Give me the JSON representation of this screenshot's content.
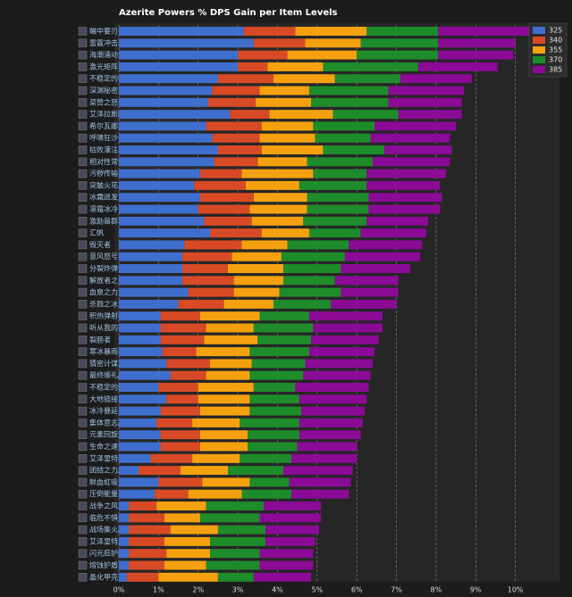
{
  "chart_data": {
    "type": "stacked-barh",
    "title": "Azerite Powers % DPS Gain per Item Levels",
    "categories": [
      "瞄中要刃",
      "雷霆冲击",
      "海潮涌动",
      "激光矩阵",
      "不稳定的催化剂",
      "深渊秘密",
      "菜赞之怒",
      "艾泽拉斯的勇士",
      "希尔瓦娜斯的决心/安度因的奉献",
      "呼啸狂沙",
      "枯败灌注",
      "相对性常化装置",
      "污秽传输",
      "突触火花电容",
      "冰霜迸发",
      "凛霜冰冷",
      "激励兽群",
      "汇帆",
      "毁灭者",
      "意风怒号",
      "分裂炸弹",
      "解放者之力/战斗荣耀",
      "血泉之力",
      "杀戮之冰",
      "积热弹射装置",
      "听从我的召唤",
      "裂肠者",
      "寒冰暴雨",
      "猜密计谋",
      "最终顺礼/反击之怒",
      "不稳定的爆焰",
      "大地链接",
      "冰冷暴延",
      "集体意志/团结一致",
      "元素回旋",
      "生命之速",
      "艾泽里特浇球",
      "团结之力/众志成城",
      "鲜血虹吸",
      "压倒能量",
      "战争之风",
      "临危不惧",
      "战场集火/战场精准",
      "艾泽里特血脉",
      "闪光庇护所",
      "熔蚀护盾",
      "晶化甲壳"
    ],
    "series": [
      {
        "name": "325",
        "color": "#3f6fce",
        "values": [
          3.15,
          3.4,
          3.0,
          3.0,
          2.5,
          2.35,
          2.25,
          2.8,
          2.2,
          2.35,
          2.5,
          2.4,
          2.05,
          1.9,
          2.05,
          2.0,
          2.15,
          2.3,
          1.65,
          1.6,
          1.6,
          1.6,
          1.75,
          1.5,
          1.05,
          1.05,
          1.05,
          1.1,
          1.2,
          1.3,
          1.0,
          1.2,
          1.05,
          0.95,
          1.05,
          1.05,
          0.8,
          0.5,
          1.0,
          0.9,
          0.25,
          0.25,
          0.25,
          0.25,
          0.25,
          0.25,
          0.2
        ]
      },
      {
        "name": "340",
        "color": "#d84a26",
        "values": [
          1.3,
          1.3,
          1.25,
          0.75,
          1.4,
          1.2,
          1.2,
          1.0,
          1.4,
          1.2,
          1.1,
          1.1,
          1.05,
          1.3,
          1.35,
          1.3,
          1.2,
          1.3,
          1.45,
          1.25,
          1.15,
          1.3,
          1.15,
          1.15,
          1.0,
          1.15,
          1.1,
          0.85,
          1.1,
          0.9,
          1.0,
          0.8,
          1.0,
          0.9,
          1.0,
          1.0,
          1.05,
          1.05,
          1.1,
          0.85,
          0.7,
          0.9,
          1.05,
          0.9,
          0.95,
          0.9,
          0.8
        ]
      },
      {
        "name": "355",
        "color": "#f5a10f",
        "values": [
          1.8,
          1.4,
          1.75,
          1.4,
          1.55,
          1.25,
          1.4,
          1.6,
          1.3,
          1.4,
          1.55,
          1.25,
          1.8,
          1.35,
          1.35,
          1.45,
          1.3,
          1.2,
          1.15,
          1.25,
          1.4,
          1.25,
          1.15,
          1.25,
          1.5,
          1.2,
          1.35,
          1.35,
          1.05,
          1.1,
          1.4,
          1.3,
          1.25,
          1.2,
          1.2,
          1.2,
          1.2,
          1.2,
          1.2,
          1.35,
          1.25,
          0.9,
          1.2,
          1.15,
          1.1,
          1.05,
          1.5
        ]
      },
      {
        "name": "370",
        "color": "#1e8c2a",
        "values": [
          1.8,
          1.95,
          2.05,
          2.4,
          1.65,
          2.0,
          1.95,
          1.65,
          1.55,
          1.4,
          1.55,
          1.65,
          1.35,
          1.7,
          1.55,
          1.55,
          1.6,
          1.3,
          1.55,
          1.6,
          1.45,
          1.3,
          1.55,
          1.45,
          1.25,
          1.5,
          1.35,
          1.5,
          1.35,
          1.35,
          1.05,
          1.25,
          1.3,
          1.5,
          1.3,
          1.25,
          1.3,
          1.4,
          1.0,
          1.25,
          1.45,
          1.5,
          1.2,
          1.4,
          1.25,
          1.35,
          0.9
        ]
      },
      {
        "name": "385",
        "color": "#8b0a96",
        "values": [
          2.85,
          1.95,
          1.9,
          2.0,
          1.8,
          1.9,
          1.85,
          1.6,
          2.05,
          2.0,
          1.7,
          1.95,
          2.0,
          1.85,
          1.85,
          1.8,
          1.55,
          1.65,
          1.85,
          1.9,
          1.75,
          1.6,
          1.45,
          1.65,
          1.85,
          1.75,
          1.7,
          1.65,
          1.7,
          1.7,
          1.85,
          1.7,
          1.6,
          1.6,
          1.55,
          1.5,
          1.65,
          1.75,
          1.55,
          1.45,
          1.45,
          1.55,
          1.35,
          1.25,
          1.35,
          1.35,
          1.45
        ]
      }
    ],
    "xlim": [
      0,
      11
    ],
    "xticks": [
      {
        "value": 0,
        "label": "0%"
      },
      {
        "value": 1,
        "label": "1%"
      },
      {
        "value": 2,
        "label": "2%"
      },
      {
        "value": 3,
        "label": "3%"
      },
      {
        "value": 4,
        "label": "4%"
      },
      {
        "value": 5,
        "label": "5%"
      },
      {
        "value": 6,
        "label": "6%"
      },
      {
        "value": 7,
        "label": "7%"
      },
      {
        "value": 8,
        "label": "8%"
      },
      {
        "value": 9,
        "label": "9%"
      },
      {
        "value": 10,
        "label": "10%"
      }
    ],
    "grid": true,
    "legend": "top-right"
  }
}
